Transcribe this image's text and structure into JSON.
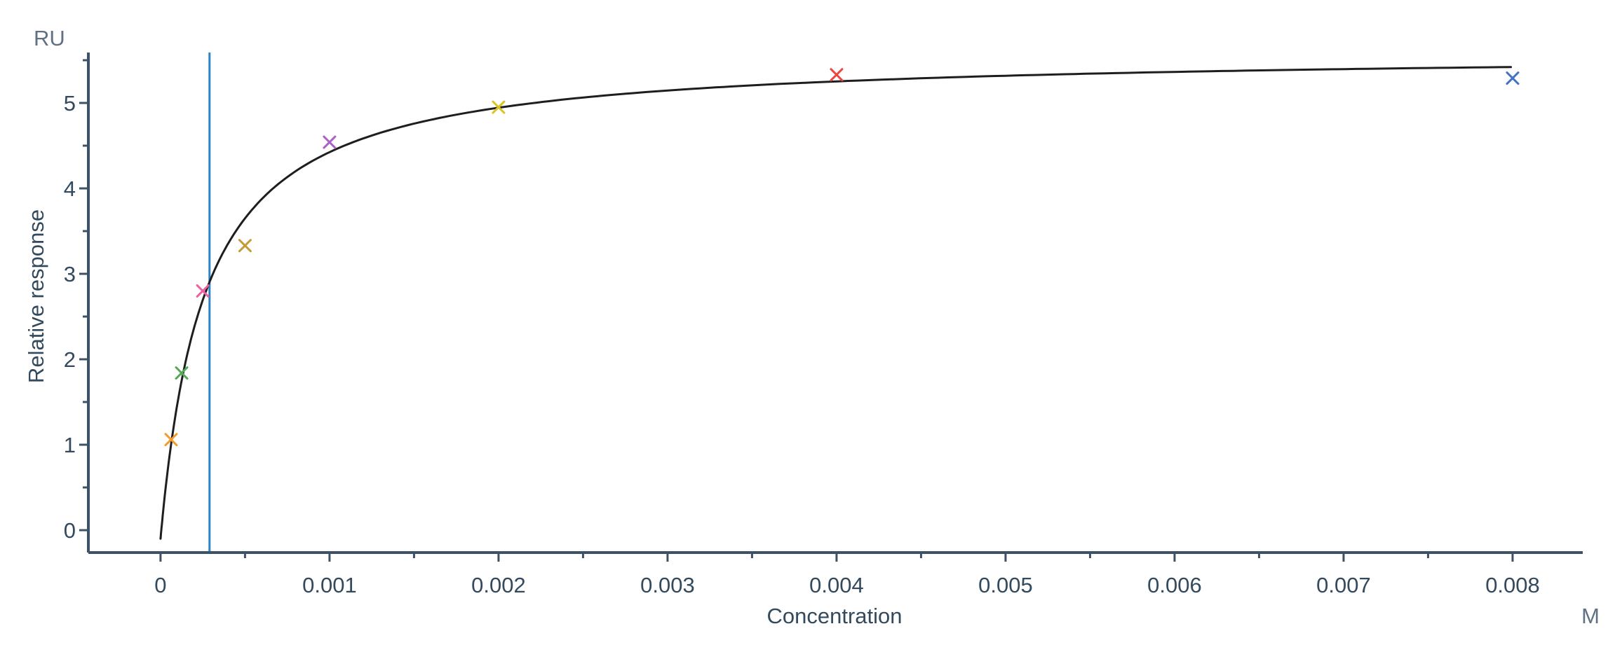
{
  "chart_data": {
    "type": "scatter",
    "title": "",
    "xlabel": "Concentration",
    "ylabel": "Relative response",
    "x_axis_unit": "M",
    "y_axis_unit": "RU",
    "grid": false,
    "legend": "none",
    "xlim": [
      -0.000427,
      0.008415
    ],
    "ylim": [
      -0.262,
      5.59
    ],
    "x_major_ticks": [
      {
        "value": 0,
        "label": "0"
      },
      {
        "value": 0.001,
        "label": "0.001"
      },
      {
        "value": 0.002,
        "label": "0.002"
      },
      {
        "value": 0.003,
        "label": "0.003"
      },
      {
        "value": 0.004,
        "label": "0.004"
      },
      {
        "value": 0.005,
        "label": "0.005"
      },
      {
        "value": 0.006,
        "label": "0.006"
      },
      {
        "value": 0.007,
        "label": "0.007"
      },
      {
        "value": 0.008,
        "label": "0.008"
      }
    ],
    "x_minor_ticks": [
      0.0005,
      0.0015,
      0.0025,
      0.0035,
      0.0045,
      0.0055,
      0.0065,
      0.0075
    ],
    "y_major_ticks": [
      {
        "value": 0,
        "label": "0"
      },
      {
        "value": 1,
        "label": "1"
      },
      {
        "value": 2,
        "label": "2"
      },
      {
        "value": 3,
        "label": "3"
      },
      {
        "value": 4,
        "label": "4"
      },
      {
        "value": 5,
        "label": "5"
      }
    ],
    "y_minor_ticks": [
      0.5,
      1.5,
      2.5,
      3.5,
      4.5,
      5.5
    ],
    "points": [
      {
        "concentration": 6.25e-05,
        "response": 1.06,
        "color": "#f59b2c"
      },
      {
        "concentration": 0.000125,
        "response": 1.84,
        "color": "#57a85a"
      },
      {
        "concentration": 0.00025,
        "response": 2.8,
        "color": "#ee5f9e"
      },
      {
        "concentration": 0.0005,
        "response": 3.33,
        "color": "#c49b37"
      },
      {
        "concentration": 0.001,
        "response": 4.54,
        "color": "#ad61c8"
      },
      {
        "concentration": 0.002,
        "response": 4.95,
        "color": "#ddc226"
      },
      {
        "concentration": 0.004,
        "response": 5.33,
        "color": "#ee4540"
      },
      {
        "concentration": 0.008,
        "response": 5.29,
        "color": "#4472c4"
      }
    ],
    "fit_curve": {
      "model": "steady-state 1:1 binding  R = Rmax*C/(KD+C) + offset",
      "rmax": 5.7,
      "kd": 0.00026,
      "offset": -0.1,
      "c_start": 0,
      "c_end": 0.00799,
      "color": "#1e1e1e"
    },
    "kd_line": {
      "concentration": 0.00029,
      "color": "#2a84c6"
    },
    "style": {
      "axis_color": "#3d5266",
      "tick_label_color": "#334a5e",
      "unit_label_color": "#5f7183",
      "background": "#ffffff"
    }
  }
}
